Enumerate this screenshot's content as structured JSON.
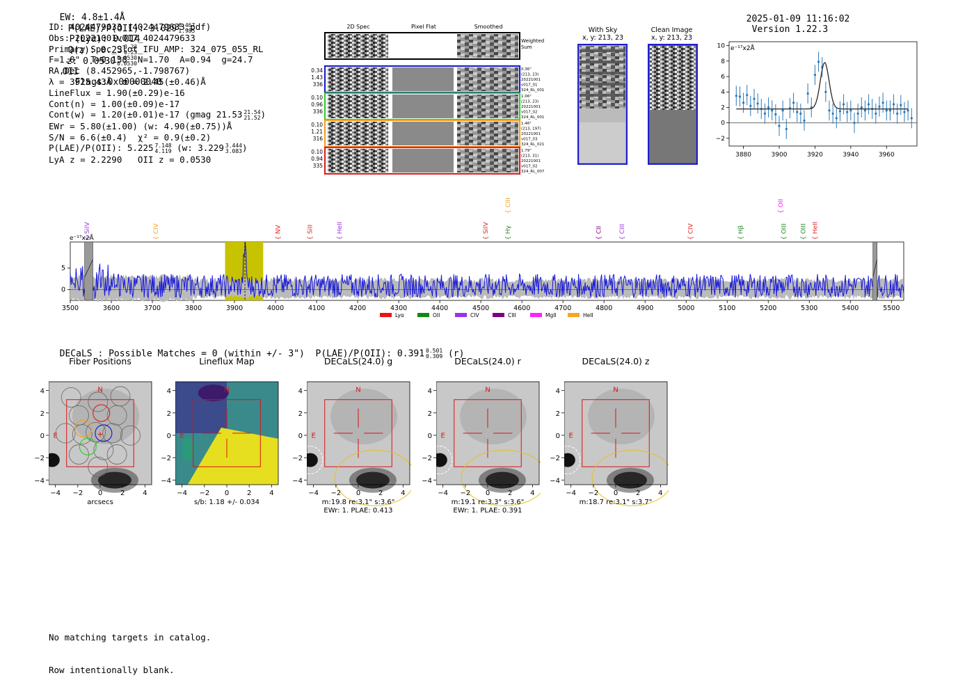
{
  "header": {
    "ew": "EW: 4.8±1.4Å",
    "plae_label": "P(LAE)/P(OII): 3.029",
    "plae_hi": "6.467",
    "plae_lo": "1.985",
    "plya": "P(Lyα): 0.014",
    "q_label": "Q(z): 0.23",
    "q_hi": "0.23",
    "q_lo": "0.23",
    "z_label": "z: 0.0530",
    "z_hi": "0.0530",
    "z_lo": "0.0530",
    "z_line": "OII",
    "flags": "Flags:0x00000040",
    "timestamp": "2025-01-09 11:16:02",
    "version": "Version 1.22.3"
  },
  "info": {
    "id": "ID: 4024479633 (4024479633.pdf)",
    "obs": "Obs: 20221001v017_4024479633",
    "primary": "Primary Spec_Slot_IFU_AMP: 324_075_055_RL",
    "params": "F=1.8\"  T=0.138  N=1.70  A=0.94  g=24.7",
    "radec": "RA,Dec (8.452965,-1.798767)",
    "lambda": "λ = 3925.43Å  σ = 2.45(±0.46)Å",
    "lineflux": "LineFlux = 1.90(±0.29)e-16",
    "cont_n": "Cont(n) = 1.00(±0.09)e-17",
    "cont_w": "Cont(w) = 1.20(±0.01)e-17 (gmag 21.53",
    "cont_w_hi": "21.54",
    "cont_w_lo": "21.52",
    "cont_w_end": ")",
    "ewr": "EWr = 5.80(±1.00) (w: 4.90(±0.75))Å",
    "sn": "S/N = 6.6(±0.4)  χ² = 0.9(±0.2)",
    "plae": "P(LAE)/P(OII): 5.225",
    "plae_hi": "7.148",
    "plae_lo": "4.119",
    "plae_w": "(w: 3.229",
    "plae_w_hi": "3.444",
    "plae_w_lo": "3.083",
    "plae_w_end": ")",
    "lya_z": "LyA z = 2.2290   OII z = 0.0530"
  },
  "cutouts": {
    "col_headers": [
      "2D Spec",
      "Pixel Flat",
      "Smoothed"
    ],
    "weighted_label": [
      "Weighted",
      "Sum"
    ],
    "rows": [
      {
        "color": "#1f1fcc",
        "left": [
          "0.34",
          "1.43",
          "336"
        ],
        "right": [
          "0.36\"",
          "(213, 23)",
          "20221001",
          "v017_01",
          "324_RL_001"
        ]
      },
      {
        "color": "#33cc33",
        "left": [
          "0.10",
          "0.96",
          "336"
        ],
        "right": [
          "1.06\"",
          "(213, 23)",
          "20221001",
          "v017_02",
          "324_RL_001"
        ]
      },
      {
        "color": "#f0a020",
        "left": [
          "0.10",
          "1.21",
          "316"
        ],
        "right": [
          "1.46\"",
          "(213, 197)",
          "20221001",
          "v017_03",
          "324_RL_021"
        ]
      },
      {
        "color": "#dd2222",
        "left": [
          "0.10",
          "0.94",
          "335"
        ],
        "right": [
          "1.79\"",
          "(213, 31)",
          "20221001",
          "v017_02",
          "324_RL_007"
        ]
      }
    ]
  },
  "sky": {
    "with_sky_title": "With Sky",
    "with_sky_sub": "x, y: 213, 23",
    "clean_title": "Clean Image",
    "clean_sub": "x, y: 213, 23"
  },
  "zoom_plot": {
    "unit": "e⁻¹⁷x2Å",
    "x_ticks": [
      "3880",
      "3900",
      "3920",
      "3940",
      "3960"
    ],
    "y_ticks": [
      "10",
      "8",
      "6",
      "4",
      "2",
      "0",
      "−2"
    ]
  },
  "chart_data": [
    {
      "type": "scatter",
      "title": "",
      "ylabel": "e⁻¹⁷x2Å",
      "xlim": [
        3872,
        3977
      ],
      "ylim": [
        -3,
        10.5
      ],
      "x": [
        3876,
        3878,
        3880,
        3882,
        3884,
        3886,
        3888,
        3890,
        3892,
        3894,
        3896,
        3898,
        3900,
        3902,
        3904,
        3906,
        3908,
        3910,
        3912,
        3914,
        3916,
        3918,
        3920,
        3922,
        3924,
        3926,
        3928,
        3930,
        3932,
        3934,
        3936,
        3938,
        3940,
        3942,
        3944,
        3946,
        3948,
        3950,
        3952,
        3954,
        3956,
        3958,
        3960,
        3962,
        3964,
        3966,
        3968,
        3970,
        3972,
        3974
      ],
      "y": [
        3.5,
        3.4,
        2.6,
        3.6,
        2.2,
        3.1,
        2.5,
        1.8,
        1.2,
        2.0,
        1.6,
        1.1,
        -0.4,
        1.6,
        -0.8,
        1.9,
        2.6,
        1.4,
        1.2,
        0.3,
        3.8,
        2.0,
        6.2,
        7.9,
        7.2,
        4.0,
        1.6,
        1.2,
        0.6,
        1.5,
        2.4,
        1.4,
        1.6,
        0.0,
        1.2,
        2.0,
        1.6,
        2.4,
        1.8,
        1.2,
        2.1,
        2.6,
        1.6,
        1.6,
        2.4,
        1.2,
        2.3,
        1.4,
        1.6,
        0.6
      ],
      "model_peak": 7.8,
      "model_baseline": 1.8
    },
    {
      "type": "line",
      "title": "",
      "ylabel": "e⁻¹⁷x2Å",
      "xlim": [
        3500,
        5530
      ],
      "ylim": [
        -2.5,
        11
      ],
      "x_ticks": [
        3500,
        3600,
        3700,
        3800,
        3900,
        4000,
        4100,
        4200,
        4300,
        4400,
        4500,
        4600,
        4700,
        4800,
        4900,
        5000,
        5100,
        5200,
        5300,
        5400,
        5500
      ],
      "y_ticks": [
        0,
        5
      ],
      "highlight_range": [
        3877,
        3970
      ],
      "line_center": 3925.43,
      "masked": [
        [
          3535,
          3555
        ],
        [
          5455,
          5465
        ]
      ],
      "line_labels": [
        {
          "name": "SiIV",
          "x": 3541,
          "color": "#9933dd"
        },
        {
          "name": "CIV",
          "x": 3708,
          "color": "#f0a020"
        },
        {
          "name": "NV",
          "x": 4006,
          "color": "#dd2222"
        },
        {
          "name": "SiII",
          "x": 4084,
          "color": "#dd2222"
        },
        {
          "name": "HeII",
          "x": 4156,
          "color": "#9933dd"
        },
        {
          "name": "SiIV",
          "x": 4512,
          "color": "#dd2222"
        },
        {
          "name": "CIII",
          "x": 4566,
          "color": "#f0a020",
          "high": true
        },
        {
          "name": "Hγ",
          "x": 4566,
          "color": "#228822"
        },
        {
          "name": "CII",
          "x": 4787,
          "color": "#800080"
        },
        {
          "name": "CIII",
          "x": 4844,
          "color": "#9933dd"
        },
        {
          "name": "CIV",
          "x": 5011,
          "color": "#dd2222"
        },
        {
          "name": "Hβ",
          "x": 5133,
          "color": "#228822"
        },
        {
          "name": "OII",
          "x": 5230,
          "color": "#ee22ee",
          "high": true
        },
        {
          "name": "OIII",
          "x": 5238,
          "color": "#228822"
        },
        {
          "name": "OIII",
          "x": 5285,
          "color": "#228822"
        },
        {
          "name": "HeII",
          "x": 5314,
          "color": "#dd2222"
        }
      ],
      "legend": [
        {
          "name": "Lyα",
          "color": "#ee1111"
        },
        {
          "name": "OII",
          "color": "#118811"
        },
        {
          "name": "CIV",
          "color": "#9933ee"
        },
        {
          "name": "CIII",
          "color": "#800080"
        },
        {
          "name": "MgII",
          "color": "#ff22ff"
        },
        {
          "name": "HeII",
          "color": "#f5a623"
        }
      ]
    }
  ],
  "decals": {
    "header": "DECaLS : Possible Matches = 0 (within +/- 3\")  P(LAE)/P(OII): 0.391",
    "hi": "0.501",
    "lo": "0.309",
    "band": "(r)",
    "panels": [
      {
        "title": "Fiber Positions",
        "caption1": "arcsecs",
        "caption2": ""
      },
      {
        "title": "Lineflux Map",
        "caption1": "s/b: 1.18 +/- 0.034",
        "caption2": ""
      },
      {
        "title": "DECaLS(24.0) g",
        "caption1": "m:19.8  re:3.1\"  s:3.6\"",
        "caption2": "EWr: 1. PLAE: 0.413"
      },
      {
        "title": "DECaLS(24.0) r",
        "caption1": "m:19.1  re:3.3\"  s:3.6\"",
        "caption2": "EWr: 1. PLAE: 0.391"
      },
      {
        "title": "DECaLS(24.0) z",
        "caption1": "m:18.7  re:3.1\"  s:3.7\"",
        "caption2": ""
      }
    ],
    "x_ticks": [
      "−4",
      "−2",
      "0",
      "2",
      "4"
    ],
    "y_ticks": [
      "4",
      "2",
      "0",
      "−2",
      "−4"
    ],
    "n_label": "N",
    "e_label": "E"
  },
  "footer": {
    "line1": "No matching targets in catalog.",
    "line2": "Row intentionally blank."
  }
}
